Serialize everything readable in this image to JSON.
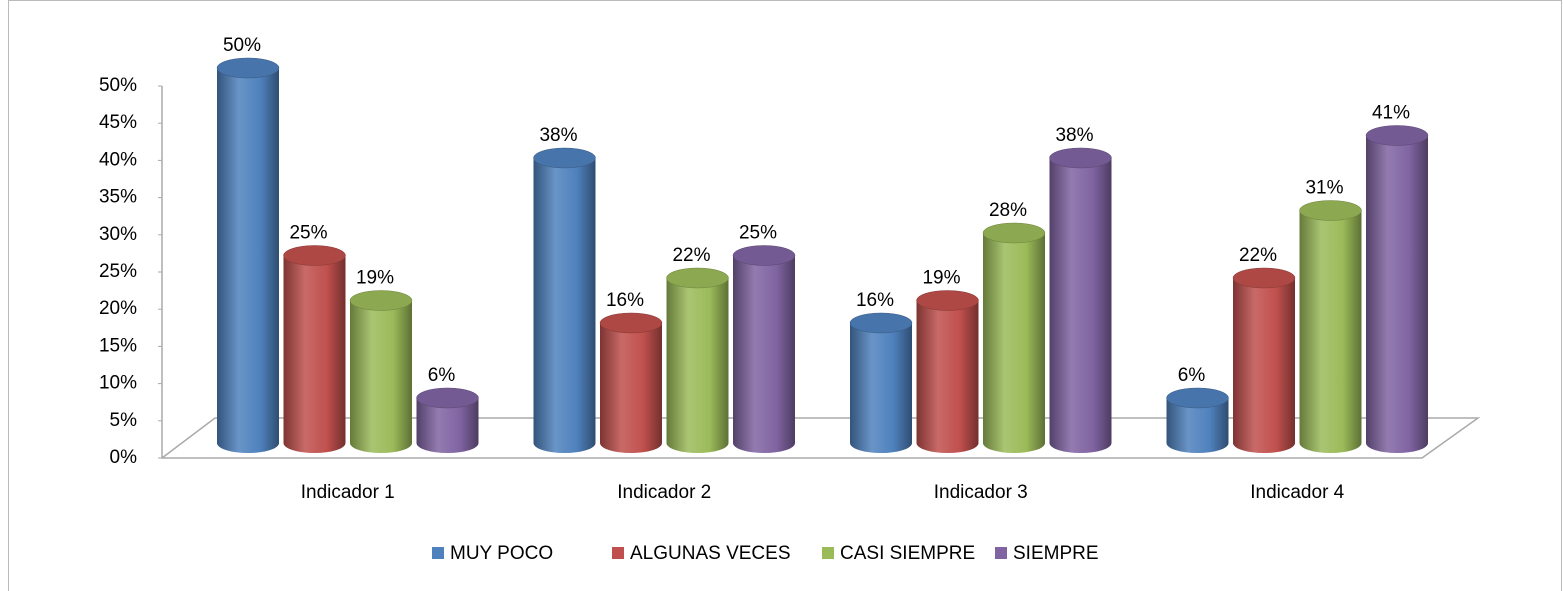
{
  "chart_data": {
    "type": "bar3d",
    "categories": [
      "Indicador 1",
      "Indicador 2",
      "Indicador 3",
      "Indicador 4"
    ],
    "series": [
      {
        "name": "MUY POCO",
        "color": "#4f81bd",
        "values": [
          50,
          38,
          16,
          6
        ],
        "value_labels": [
          "50%",
          "38%",
          "16%",
          "6%"
        ]
      },
      {
        "name": "ALGUNAS VECES",
        "color": "#c0504d",
        "values": [
          25,
          16,
          19,
          22
        ],
        "value_labels": [
          "25%",
          "16%",
          "19%",
          "22%"
        ]
      },
      {
        "name": "CASI SIEMPRE",
        "color": "#9bbb59",
        "values": [
          19,
          22,
          28,
          31
        ],
        "value_labels": [
          "19%",
          "22%",
          "28%",
          "31%"
        ]
      },
      {
        "name": "SIEMPRE",
        "color": "#8064a2",
        "values": [
          6,
          25,
          38,
          41
        ],
        "value_labels": [
          "6%",
          "25%",
          "38%",
          "41%"
        ]
      }
    ],
    "ylim": [
      0,
      50
    ],
    "yticks": [
      {
        "value": 0,
        "label": "0%"
      },
      {
        "value": 5,
        "label": "5%"
      },
      {
        "value": 10,
        "label": "10%"
      },
      {
        "value": 15,
        "label": "15%"
      },
      {
        "value": 20,
        "label": "20%"
      },
      {
        "value": 25,
        "label": "25%"
      },
      {
        "value": 30,
        "label": "30%"
      },
      {
        "value": 35,
        "label": "35%"
      },
      {
        "value": 40,
        "label": "40%"
      },
      {
        "value": 45,
        "label": "45%"
      },
      {
        "value": 50,
        "label": "50%"
      }
    ],
    "legend": "bottom"
  }
}
